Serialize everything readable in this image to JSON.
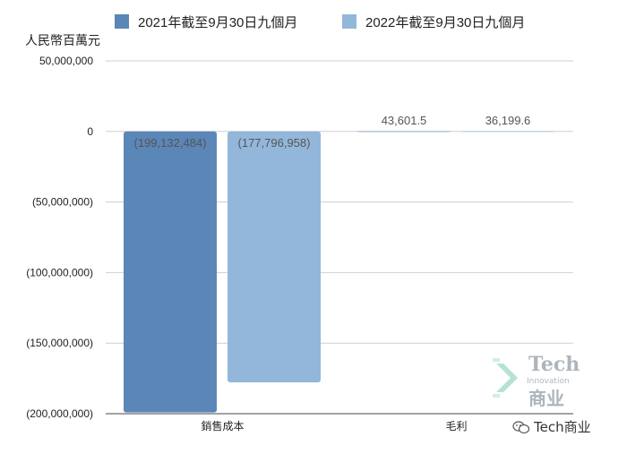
{
  "chart_data": {
    "type": "bar",
    "unit_label": "人民幣百萬元",
    "categories": [
      "銷售成本",
      "毛利"
    ],
    "series": [
      {
        "name": "2021年截至9月30日九個月",
        "color": "#5b86b8",
        "values": [
          -199132484,
          43601.5
        ],
        "labels": [
          "(199,132,484)",
          "43,601.5"
        ]
      },
      {
        "name": "2022年截至9月30日九個月",
        "color": "#93b7da",
        "values": [
          -177796958,
          36199.6
        ],
        "labels": [
          "(177,796,958)",
          "36,199.6"
        ]
      }
    ],
    "ylim": [
      -200000000,
      50000000
    ],
    "yticks": [
      {
        "value": 50000000,
        "label": "50,000,000"
      },
      {
        "value": 0,
        "label": "0"
      },
      {
        "value": -50000000,
        "label": "(50,000,000)"
      },
      {
        "value": -100000000,
        "label": "(100,000,000)"
      },
      {
        "value": -150000000,
        "label": "(150,000,000)"
      },
      {
        "value": -200000000,
        "label": "(200,000,000)"
      }
    ],
    "grid": true,
    "legend_position": "top"
  },
  "watermark": {
    "logo_line1": "Tech",
    "logo_line2": "Innovation",
    "logo_line3": "商业",
    "brand_text": "Tech商业"
  }
}
